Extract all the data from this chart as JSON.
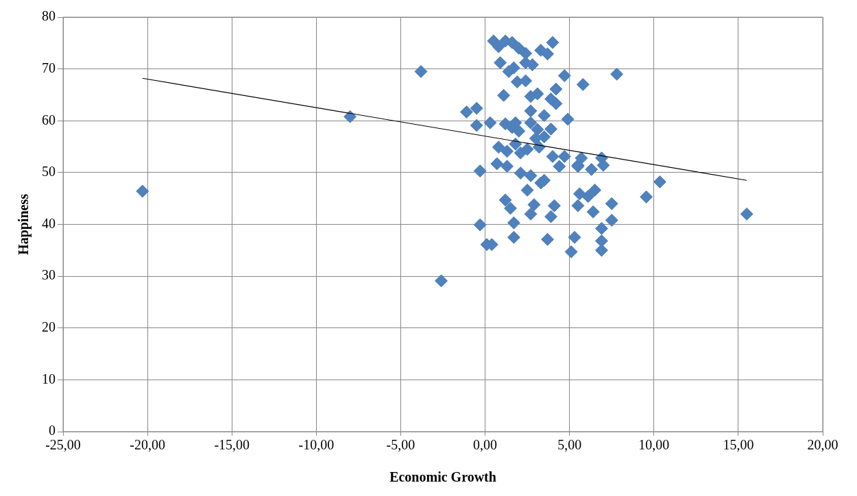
{
  "chart_data": {
    "type": "scatter",
    "xlabel": "Economic Growth",
    "ylabel": "Happiness",
    "xlim": [
      -25,
      20
    ],
    "ylim": [
      0,
      80
    ],
    "xticks": [
      {
        "value": -25,
        "label": "-25,00"
      },
      {
        "value": -20,
        "label": "-20,00"
      },
      {
        "value": -15,
        "label": "-15,00"
      },
      {
        "value": -10,
        "label": "-10,00"
      },
      {
        "value": -5,
        "label": "-5,00"
      },
      {
        "value": 0,
        "label": "0,00"
      },
      {
        "value": 5,
        "label": "5,00"
      },
      {
        "value": 10,
        "label": "10,00"
      },
      {
        "value": 15,
        "label": "15,00"
      },
      {
        "value": 20,
        "label": "20,00"
      }
    ],
    "yticks": [
      0,
      10,
      20,
      30,
      40,
      50,
      60,
      70,
      80
    ],
    "grid": true,
    "marker": "diamond",
    "series": [
      {
        "color": "#4f81bd",
        "x": [
          -20.3,
          -8.0,
          -3.8,
          -2.6,
          15.5,
          10.35,
          9.55,
          7.8,
          0.5,
          0.8,
          1.2,
          1.6,
          2.0,
          2.4,
          4.0,
          3.3,
          3.7,
          0.9,
          1.4,
          1.7,
          2.4,
          2.8,
          4.7,
          5.8,
          1.9,
          2.4,
          1.1,
          2.7,
          3.1,
          3.9,
          4.2,
          4.2,
          -1.1,
          -0.5,
          -0.5,
          0.3,
          1.2,
          1.8,
          2.7,
          2.7,
          3.5,
          4.9,
          3.1,
          3.9,
          1.6,
          3.5,
          0.8,
          1.3,
          2.1,
          2.5,
          3.2,
          4.0,
          -0.3,
          0.7,
          1.3,
          2.1,
          2.7,
          3.3,
          2.5,
          4.4,
          5.5,
          6.3,
          1.2,
          1.5,
          2.9,
          2.7,
          3.9,
          4.1,
          5.6,
          5.5,
          6.4,
          6.1,
          -0.3,
          1.7,
          1.7,
          0.1,
          0.4,
          3.7,
          5.3,
          5.1,
          4.7,
          5.7,
          5.5,
          6.9,
          7.0,
          3.5,
          6.5,
          7.5,
          7.5,
          6.9,
          6.9,
          6.9,
          1.8,
          3.0,
          2.0
        ],
        "values": [
          46.4,
          60.8,
          69.5,
          29.1,
          42.0,
          48.2,
          45.3,
          69.0,
          75.4,
          74.3,
          75.4,
          75.1,
          74.0,
          73.0,
          75.1,
          73.6,
          72.9,
          71.2,
          69.5,
          70.2,
          71.2,
          70.8,
          68.7,
          67.0,
          67.5,
          67.7,
          64.9,
          64.7,
          65.2,
          64.2,
          66.1,
          63.3,
          61.7,
          62.4,
          59.1,
          59.6,
          59.4,
          59.6,
          61.9,
          59.6,
          61.0,
          60.3,
          58.3,
          58.4,
          58.7,
          56.9,
          54.9,
          54.1,
          53.8,
          54.5,
          54.9,
          53.1,
          50.3,
          51.7,
          51.2,
          49.9,
          49.4,
          48.0,
          46.6,
          51.2,
          51.2,
          50.6,
          44.7,
          43.1,
          43.8,
          42.0,
          41.5,
          43.6,
          45.9,
          43.6,
          42.4,
          45.4,
          39.9,
          40.3,
          37.5,
          36.1,
          36.1,
          37.1,
          37.5,
          34.7,
          53.1,
          52.8,
          51.4,
          52.8,
          51.4,
          48.5,
          46.6,
          44.0,
          40.8,
          39.2,
          36.8,
          35.0,
          55.5,
          56.6,
          58.0
        ]
      },
      {
        "type": "line",
        "color": "#000000",
        "marker": "none",
        "x": [
          -20.3,
          15.5
        ],
        "values": [
          68.2,
          48.5
        ]
      }
    ]
  }
}
